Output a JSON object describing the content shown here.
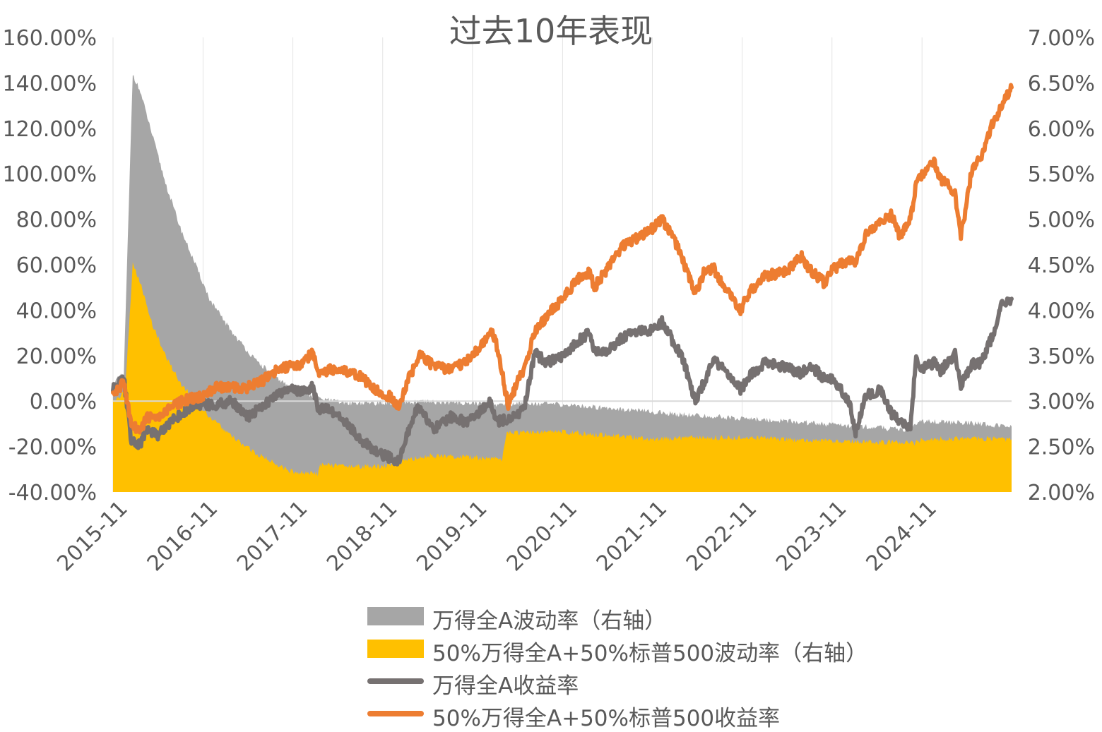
{
  "chart_data": {
    "type": "area+line",
    "title": "过去10年表现",
    "x_tick_labels": [
      "2015-11",
      "2016-11",
      "2017-11",
      "2018-11",
      "2019-11",
      "2020-11",
      "2021-11",
      "2022-11",
      "2023-11",
      "2024-11"
    ],
    "x_range": [
      "2015-11-01",
      "2025-10-31"
    ],
    "y_left": {
      "range": [
        -40,
        160
      ],
      "step": 20,
      "unit": "%",
      "tick_labels": [
        "-40.00%",
        "-20.00%",
        "0.00%",
        "20.00%",
        "40.00%",
        "60.00%",
        "80.00%",
        "100.00%",
        "120.00%",
        "140.00%",
        "160.00%"
      ]
    },
    "y_right": {
      "range": [
        2.0,
        7.0
      ],
      "step": 0.5,
      "unit": "%",
      "tick_labels": [
        "2.00%",
        "2.50%",
        "3.00%",
        "3.50%",
        "4.00%",
        "4.50%",
        "5.00%",
        "5.50%",
        "6.00%",
        "6.50%",
        "7.00%"
      ]
    },
    "grid": "vertical-only",
    "legend_position": "bottom",
    "series": [
      {
        "name": "万得全A波动率（右轴）",
        "type": "area",
        "axis": "right",
        "color": "#a6a6a6",
        "points": [
          [
            "2015-11-01",
            3.2
          ],
          [
            "2015-12-15",
            3.3
          ],
          [
            "2016-01-20",
            6.6
          ],
          [
            "2016-02-20",
            6.4
          ],
          [
            "2016-04-01",
            6.0
          ],
          [
            "2016-06-01",
            5.4
          ],
          [
            "2016-08-01",
            4.9
          ],
          [
            "2016-10-01",
            4.5
          ],
          [
            "2016-12-01",
            4.1
          ],
          [
            "2017-03-01",
            3.75
          ],
          [
            "2017-06-01",
            3.45
          ],
          [
            "2017-09-01",
            3.25
          ],
          [
            "2017-11-01",
            3.12
          ],
          [
            "2018-03-01",
            3.02
          ],
          [
            "2018-06-01",
            2.98
          ],
          [
            "2018-11-01",
            2.98
          ],
          [
            "2019-05-01",
            2.99
          ],
          [
            "2019-11-01",
            2.98
          ],
          [
            "2020-03-01",
            2.96
          ],
          [
            "2020-06-01",
            2.98
          ],
          [
            "2020-11-01",
            2.96
          ],
          [
            "2021-06-01",
            2.92
          ],
          [
            "2021-11-01",
            2.88
          ],
          [
            "2022-05-01",
            2.84
          ],
          [
            "2022-11-01",
            2.81
          ],
          [
            "2023-05-01",
            2.78
          ],
          [
            "2023-11-01",
            2.74
          ],
          [
            "2024-05-01",
            2.71
          ],
          [
            "2024-09-01",
            2.68
          ],
          [
            "2024-11-01",
            2.78
          ],
          [
            "2025-05-01",
            2.76
          ],
          [
            "2025-10-31",
            2.72
          ]
        ]
      },
      {
        "name": "50%万得全A+50%标普500波动率（右轴）",
        "type": "area",
        "axis": "right",
        "color": "#ffc000",
        "points": [
          [
            "2015-11-01",
            3.0
          ],
          [
            "2015-12-20",
            3.1
          ],
          [
            "2016-01-20",
            4.5
          ],
          [
            "2016-02-20",
            4.3
          ],
          [
            "2016-04-01",
            3.9
          ],
          [
            "2016-06-01",
            3.5
          ],
          [
            "2016-08-01",
            3.2
          ],
          [
            "2016-10-01",
            3.0
          ],
          [
            "2016-12-01",
            2.82
          ],
          [
            "2017-03-01",
            2.6
          ],
          [
            "2017-06-01",
            2.43
          ],
          [
            "2017-09-01",
            2.3
          ],
          [
            "2017-11-01",
            2.22
          ],
          [
            "2018-02-10",
            2.2
          ],
          [
            "2018-02-20",
            2.3
          ],
          [
            "2018-08-01",
            2.28
          ],
          [
            "2018-11-01",
            2.28
          ],
          [
            "2019-05-01",
            2.4
          ],
          [
            "2019-11-01",
            2.38
          ],
          [
            "2020-03-01",
            2.36
          ],
          [
            "2020-03-20",
            2.65
          ],
          [
            "2020-11-01",
            2.66
          ],
          [
            "2021-06-01",
            2.62
          ],
          [
            "2021-11-01",
            2.58
          ],
          [
            "2022-05-01",
            2.6
          ],
          [
            "2022-11-01",
            2.6
          ],
          [
            "2023-05-01",
            2.58
          ],
          [
            "2023-11-01",
            2.56
          ],
          [
            "2024-05-01",
            2.55
          ],
          [
            "2024-10-01",
            2.54
          ],
          [
            "2024-11-01",
            2.58
          ],
          [
            "2025-05-01",
            2.59
          ],
          [
            "2025-10-31",
            2.58
          ]
        ]
      },
      {
        "name": "万得全A收益率",
        "type": "line",
        "axis": "left",
        "color": "#767171",
        "points": [
          [
            "2015-11-01",
            5
          ],
          [
            "2015-12-15",
            10
          ],
          [
            "2016-01-15",
            -18
          ],
          [
            "2016-02-20",
            -19
          ],
          [
            "2016-03-20",
            -12
          ],
          [
            "2016-05-01",
            -15
          ],
          [
            "2016-07-01",
            -8
          ],
          [
            "2016-09-01",
            -4
          ],
          [
            "2016-11-01",
            -1
          ],
          [
            "2016-12-20",
            -2
          ],
          [
            "2017-03-01",
            0
          ],
          [
            "2017-05-01",
            -7
          ],
          [
            "2017-07-01",
            -2
          ],
          [
            "2017-09-01",
            3
          ],
          [
            "2017-11-01",
            6
          ],
          [
            "2017-12-01",
            4
          ],
          [
            "2018-01-20",
            6
          ],
          [
            "2018-02-10",
            -3
          ],
          [
            "2018-04-01",
            -4
          ],
          [
            "2018-06-01",
            -9
          ],
          [
            "2018-08-01",
            -17
          ],
          [
            "2018-10-01",
            -22
          ],
          [
            "2018-12-01",
            -25
          ],
          [
            "2019-01-05",
            -26
          ],
          [
            "2019-02-15",
            -13
          ],
          [
            "2019-03-20",
            -3
          ],
          [
            "2019-05-01",
            -8
          ],
          [
            "2019-06-01",
            -12
          ],
          [
            "2019-08-01",
            -7
          ],
          [
            "2019-10-01",
            -9
          ],
          [
            "2019-11-01",
            -8
          ],
          [
            "2019-12-20",
            -3
          ],
          [
            "2020-01-15",
            0
          ],
          [
            "2020-02-05",
            -9
          ],
          [
            "2020-03-25",
            -8
          ],
          [
            "2020-05-01",
            -6
          ],
          [
            "2020-06-01",
            -2
          ],
          [
            "2020-07-10",
            21
          ],
          [
            "2020-09-01",
            17
          ],
          [
            "2020-11-01",
            20
          ],
          [
            "2021-01-10",
            27
          ],
          [
            "2021-02-20",
            30
          ],
          [
            "2021-03-10",
            22
          ],
          [
            "2021-05-01",
            22
          ],
          [
            "2021-07-01",
            28
          ],
          [
            "2021-09-01",
            31
          ],
          [
            "2021-11-01",
            31
          ],
          [
            "2021-12-10",
            35
          ],
          [
            "2022-01-15",
            28
          ],
          [
            "2022-03-01",
            20
          ],
          [
            "2022-04-25",
            0
          ],
          [
            "2022-06-01",
            9
          ],
          [
            "2022-07-10",
            18
          ],
          [
            "2022-09-01",
            13
          ],
          [
            "2022-10-25",
            5
          ],
          [
            "2022-12-01",
            11
          ],
          [
            "2023-02-01",
            17
          ],
          [
            "2023-05-01",
            15
          ],
          [
            "2023-07-01",
            12
          ],
          [
            "2023-08-01",
            16
          ],
          [
            "2023-10-01",
            10
          ],
          [
            "2023-11-01",
            10
          ],
          [
            "2024-01-10",
            0
          ],
          [
            "2024-02-05",
            -14
          ],
          [
            "2024-03-15",
            2
          ],
          [
            "2024-05-20",
            5
          ],
          [
            "2024-07-01",
            -6
          ],
          [
            "2024-09-15",
            -12
          ],
          [
            "2024-10-08",
            20
          ],
          [
            "2024-11-01",
            14
          ],
          [
            "2024-12-20",
            17
          ],
          [
            "2025-01-15",
            13
          ],
          [
            "2025-03-15",
            21
          ],
          [
            "2025-04-08",
            7
          ],
          [
            "2025-05-20",
            16
          ],
          [
            "2025-07-01",
            17
          ],
          [
            "2025-08-15",
            29
          ],
          [
            "2025-09-20",
            42
          ],
          [
            "2025-10-31",
            45
          ]
        ]
      },
      {
        "name": "50%万得全A+50%标普500收益率",
        "type": "line",
        "axis": "left",
        "color": "#ed7d31",
        "points": [
          [
            "2015-11-01",
            3
          ],
          [
            "2015-12-15",
            8
          ],
          [
            "2016-01-15",
            -11
          ],
          [
            "2016-02-20",
            -13
          ],
          [
            "2016-03-20",
            -7
          ],
          [
            "2016-05-01",
            -8
          ],
          [
            "2016-07-01",
            -2
          ],
          [
            "2016-09-01",
            1
          ],
          [
            "2016-11-01",
            2
          ],
          [
            "2016-12-20",
            6
          ],
          [
            "2017-03-01",
            6
          ],
          [
            "2017-05-01",
            6
          ],
          [
            "2017-07-01",
            9
          ],
          [
            "2017-09-01",
            14
          ],
          [
            "2017-11-01",
            16
          ],
          [
            "2017-12-01",
            15
          ],
          [
            "2018-01-20",
            22
          ],
          [
            "2018-02-10",
            12
          ],
          [
            "2018-04-01",
            14
          ],
          [
            "2018-06-01",
            13
          ],
          [
            "2018-08-01",
            11
          ],
          [
            "2018-10-01",
            5
          ],
          [
            "2018-12-01",
            2
          ],
          [
            "2019-01-05",
            -3
          ],
          [
            "2019-02-15",
            10
          ],
          [
            "2019-04-01",
            20
          ],
          [
            "2019-06-01",
            15
          ],
          [
            "2019-08-01",
            14
          ],
          [
            "2019-10-01",
            17
          ],
          [
            "2019-11-01",
            20
          ],
          [
            "2019-12-20",
            26
          ],
          [
            "2020-01-15",
            31
          ],
          [
            "2020-02-05",
            26
          ],
          [
            "2020-03-25",
            -2
          ],
          [
            "2020-05-01",
            8
          ],
          [
            "2020-06-01",
            15
          ],
          [
            "2020-07-10",
            30
          ],
          [
            "2020-09-01",
            38
          ],
          [
            "2020-11-01",
            45
          ],
          [
            "2021-01-10",
            55
          ],
          [
            "2021-02-20",
            57
          ],
          [
            "2021-03-10",
            50
          ],
          [
            "2021-05-01",
            58
          ],
          [
            "2021-07-01",
            68
          ],
          [
            "2021-09-01",
            72
          ],
          [
            "2021-11-01",
            76
          ],
          [
            "2021-12-10",
            80
          ],
          [
            "2022-01-15",
            74
          ],
          [
            "2022-03-01",
            63
          ],
          [
            "2022-04-25",
            47
          ],
          [
            "2022-06-01",
            57
          ],
          [
            "2022-07-10",
            58
          ],
          [
            "2022-09-01",
            48
          ],
          [
            "2022-10-25",
            40
          ],
          [
            "2022-12-01",
            48
          ],
          [
            "2023-02-01",
            55
          ],
          [
            "2023-05-01",
            57
          ],
          [
            "2023-07-01",
            64
          ],
          [
            "2023-08-01",
            58
          ],
          [
            "2023-10-01",
            52
          ],
          [
            "2023-11-01",
            58
          ],
          [
            "2024-01-10",
            62
          ],
          [
            "2024-02-05",
            60
          ],
          [
            "2024-03-15",
            73
          ],
          [
            "2024-05-20",
            79
          ],
          [
            "2024-07-01",
            82
          ],
          [
            "2024-08-05",
            72
          ],
          [
            "2024-09-15",
            80
          ],
          [
            "2024-10-08",
            96
          ],
          [
            "2024-11-01",
            100
          ],
          [
            "2024-12-20",
            105
          ],
          [
            "2025-01-15",
            98
          ],
          [
            "2025-03-15",
            92
          ],
          [
            "2025-04-08",
            72
          ],
          [
            "2025-05-20",
            100
          ],
          [
            "2025-07-01",
            108
          ],
          [
            "2025-08-15",
            122
          ],
          [
            "2025-09-20",
            130
          ],
          [
            "2025-10-31",
            138
          ]
        ]
      }
    ]
  },
  "legend": [
    {
      "label": "万得全A波动率（右轴）",
      "style": "area",
      "color": "#a6a6a6"
    },
    {
      "label": "50%万得全A+50%标普500波动率（右轴）",
      "style": "area",
      "color": "#ffc000"
    },
    {
      "label": "万得全A收益率",
      "style": "line",
      "color": "#767171"
    },
    {
      "label": "50%万得全A+50%标普500收益率",
      "style": "line",
      "color": "#ed7d31"
    }
  ]
}
